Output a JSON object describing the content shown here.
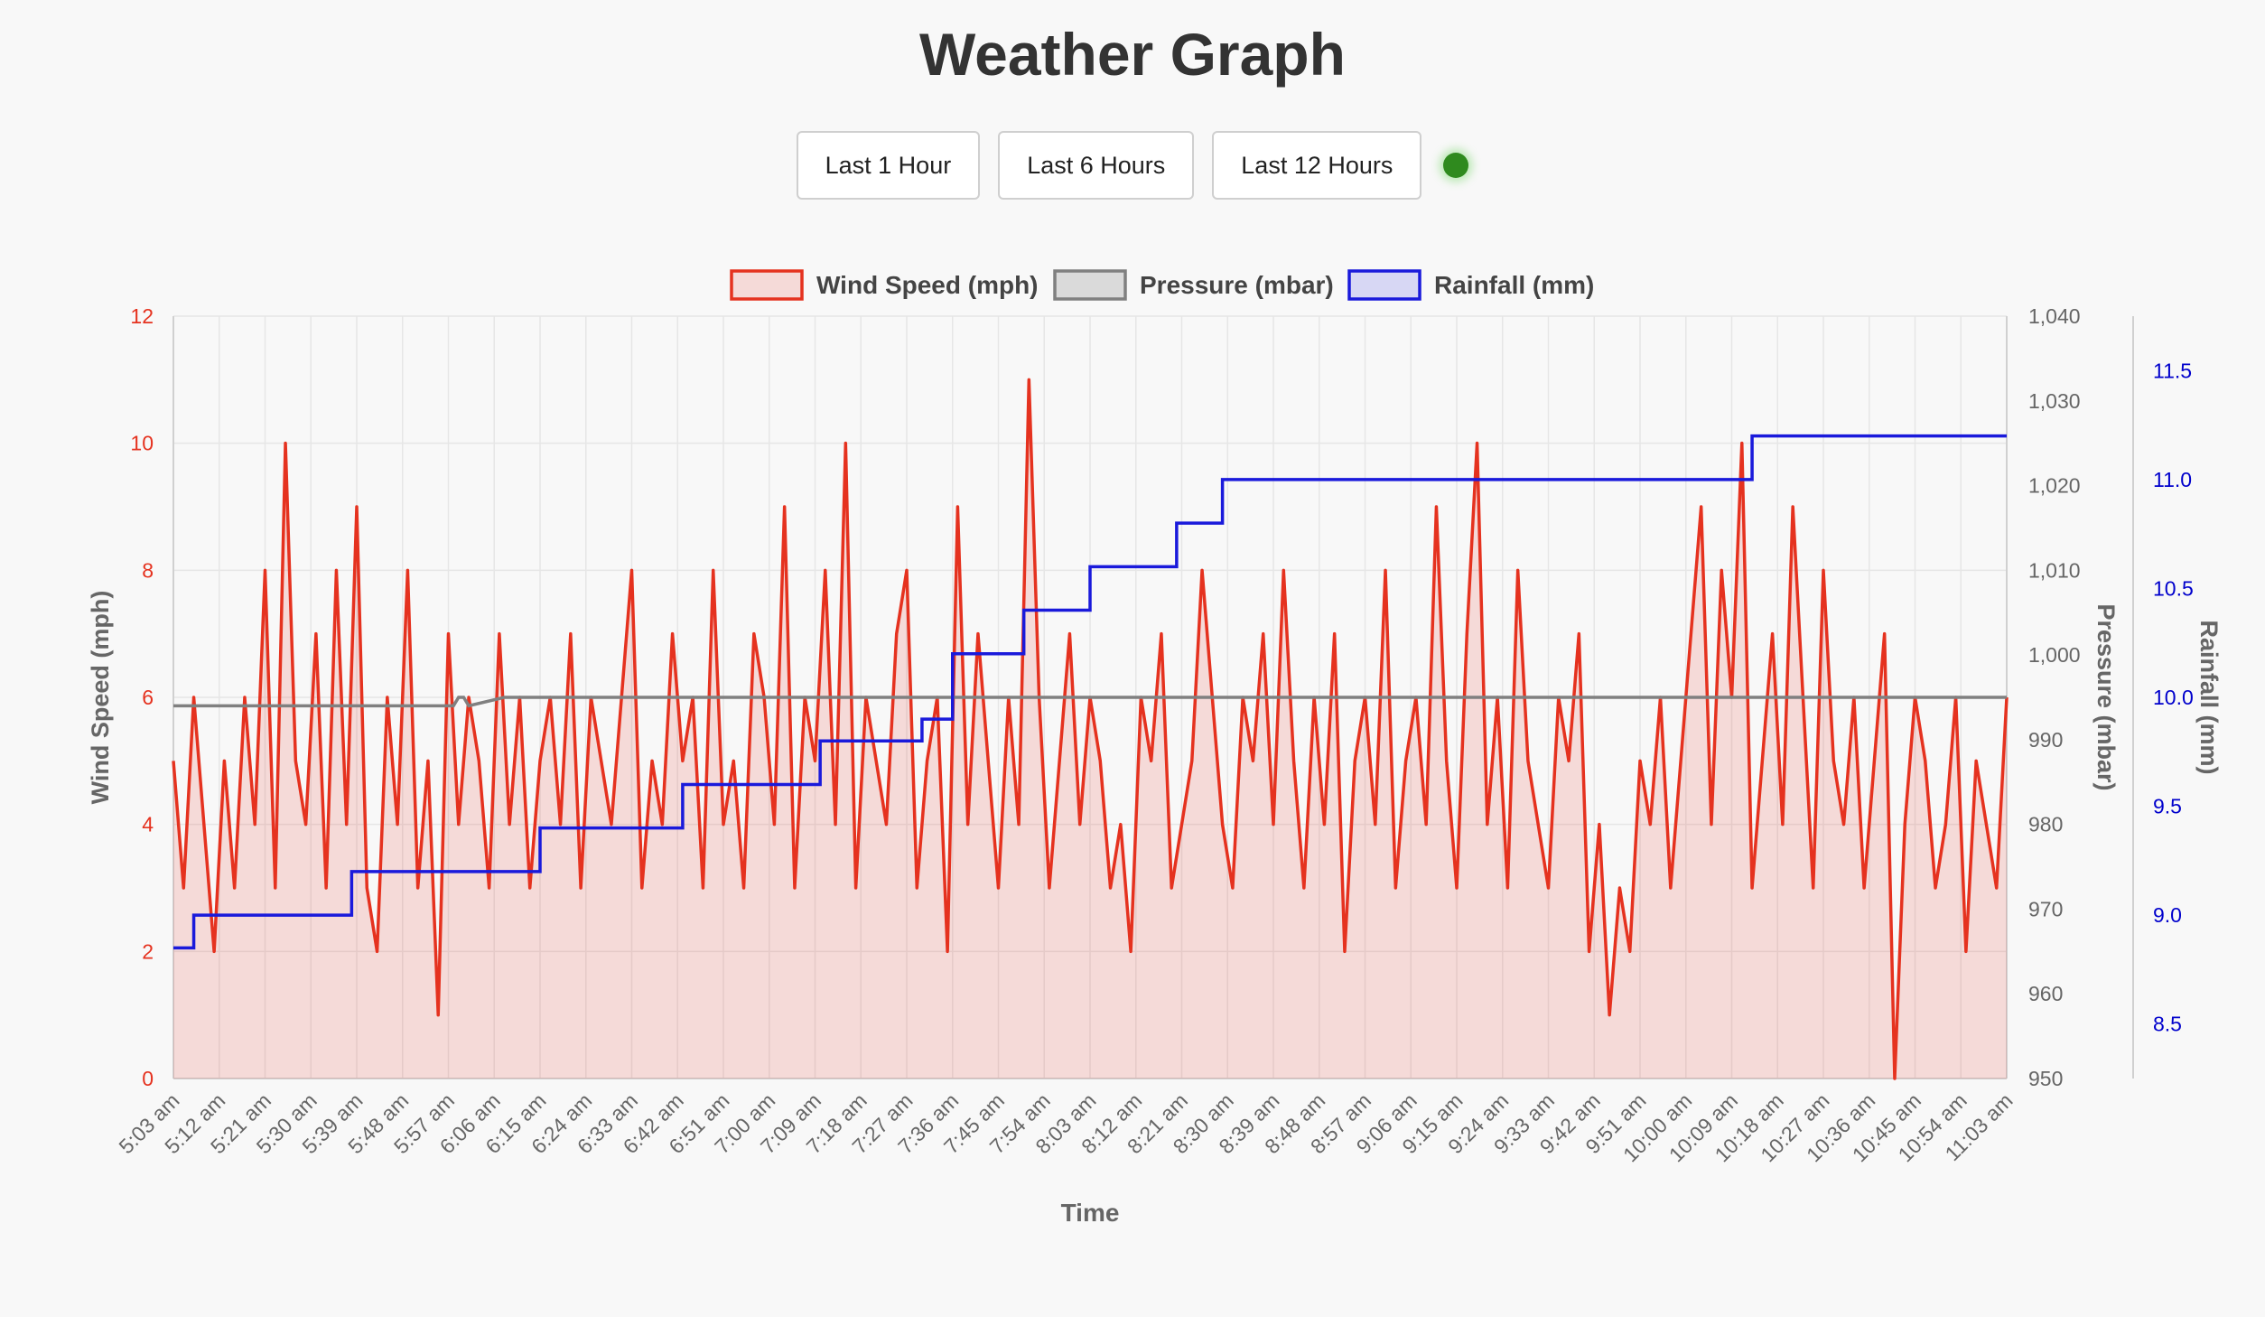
{
  "page": {
    "title": "Weather Graph"
  },
  "controls": {
    "buttons": [
      {
        "label": "Last 1 Hour"
      },
      {
        "label": "Last 6 Hours"
      },
      {
        "label": "Last 12 Hours"
      }
    ],
    "status_color": "#2f8a1e"
  },
  "chart_data": {
    "type": "line",
    "title": "",
    "xlabel": "Time",
    "ylabels": {
      "wind": "Wind Speed (mph)",
      "pressure": "Pressure (mbar)",
      "rain": "Rainfall (mm)"
    },
    "x_ticks": [
      "5:03 am",
      "5:12 am",
      "5:21 am",
      "5:30 am",
      "5:39 am",
      "5:48 am",
      "5:57 am",
      "6:06 am",
      "6:15 am",
      "6:24 am",
      "6:33 am",
      "6:42 am",
      "6:51 am",
      "7:00 am",
      "7:09 am",
      "7:18 am",
      "7:27 am",
      "7:36 am",
      "7:45 am",
      "7:54 am",
      "8:03 am",
      "8:12 am",
      "8:21 am",
      "8:30 am",
      "8:39 am",
      "8:48 am",
      "8:57 am",
      "9:06 am",
      "9:15 am",
      "9:24 am",
      "9:33 am",
      "9:42 am",
      "9:51 am",
      "10:00 am",
      "10:09 am",
      "10:18 am",
      "10:27 am",
      "10:36 am",
      "10:45 am",
      "10:54 am",
      "11:03 am"
    ],
    "x_range_minutes": [
      0,
      360
    ],
    "axes": {
      "wind": {
        "min": 0,
        "max": 12,
        "ticks": [
          "0",
          "2",
          "4",
          "6",
          "8",
          "10",
          "12"
        ],
        "color": "#e5321f"
      },
      "pressure": {
        "min": 950,
        "max": 1040,
        "ticks": [
          "950",
          "960",
          "970",
          "980",
          "990",
          "1,000",
          "1,010",
          "1,020",
          "1,030",
          "1,040"
        ],
        "color": "#666666"
      },
      "rain": {
        "min": 8.25,
        "max": 11.75,
        "ticks": [
          "8.5",
          "9.0",
          "9.5",
          "10.0",
          "10.5",
          "11.0",
          "11.5"
        ],
        "color": "#0000cc"
      }
    },
    "legend": {
      "position": "top",
      "items": [
        {
          "name": "Wind Speed (mph)",
          "stroke": "#e5321f",
          "fill": "rgba(229,50,31,0.15)"
        },
        {
          "name": "Pressure (mbar)",
          "stroke": "#808080",
          "fill": "rgba(128,128,128,0.25)"
        },
        {
          "name": "Rainfall (mm)",
          "stroke": "#1a1adb",
          "fill": "rgba(26,26,219,0.15)"
        }
      ]
    },
    "grid": true,
    "series": [
      {
        "name": "Wind Speed (mph)",
        "axis": "wind",
        "x_minutes": [
          0,
          2,
          4,
          6,
          8,
          10,
          12,
          14,
          16,
          18,
          20,
          22,
          24,
          26,
          28,
          30,
          32,
          34,
          36,
          38,
          40,
          42,
          44,
          46,
          48,
          50,
          52,
          54,
          56,
          58,
          60,
          62,
          64,
          66,
          68,
          70,
          72,
          74,
          76,
          78,
          80,
          82,
          84,
          86,
          88,
          90,
          92,
          94,
          96,
          98,
          100,
          102,
          104,
          106,
          108,
          110,
          112,
          114,
          116,
          118,
          120,
          122,
          124,
          126,
          128,
          130,
          132,
          134,
          136,
          138,
          140,
          142,
          144,
          146,
          148,
          150,
          152,
          154,
          156,
          158,
          160,
          162,
          164,
          166,
          168,
          170,
          172,
          174,
          176,
          178,
          180,
          182,
          184,
          186,
          188,
          190,
          192,
          194,
          196,
          198,
          200,
          202,
          204,
          206,
          208,
          210,
          212,
          214,
          216,
          218,
          220,
          222,
          224,
          226,
          228,
          230,
          232,
          234,
          236,
          238,
          240,
          242,
          244,
          246,
          248,
          250,
          252,
          254,
          256,
          258,
          260,
          262,
          264,
          266,
          268,
          270,
          272,
          274,
          276,
          278,
          280,
          282,
          284,
          286,
          288,
          290,
          292,
          294,
          296,
          298,
          300,
          302,
          304,
          306,
          308,
          310,
          312,
          314,
          316,
          318,
          320,
          322,
          324,
          326,
          328,
          330,
          332,
          334,
          336,
          338,
          340,
          342,
          344,
          346,
          348,
          350,
          352,
          354,
          356,
          358,
          360
        ],
        "values": [
          5,
          3,
          6,
          4,
          2,
          5,
          3,
          6,
          4,
          8,
          3,
          10,
          5,
          4,
          7,
          3,
          8,
          4,
          9,
          3,
          2,
          6,
          4,
          8,
          3,
          5,
          1,
          7,
          4,
          6,
          5,
          3,
          7,
          4,
          6,
          3,
          5,
          6,
          4,
          7,
          3,
          6,
          5,
          4,
          6,
          8,
          3,
          5,
          4,
          7,
          5,
          6,
          3,
          8,
          4,
          5,
          3,
          7,
          6,
          4,
          9,
          3,
          6,
          5,
          8,
          4,
          10,
          3,
          6,
          5,
          4,
          7,
          8,
          3,
          5,
          6,
          2,
          9,
          4,
          7,
          5,
          3,
          6,
          4,
          11,
          6,
          3,
          5,
          7,
          4,
          6,
          5,
          3,
          4,
          2,
          6,
          5,
          7,
          3,
          4,
          5,
          8,
          6,
          4,
          3,
          6,
          5,
          7,
          4,
          8,
          5,
          3,
          6,
          4,
          7,
          2,
          5,
          6,
          4,
          8,
          3,
          5,
          6,
          4,
          9,
          5,
          3,
          7,
          10,
          4,
          6,
          3,
          8,
          5,
          4,
          3,
          6,
          5,
          7,
          2,
          4,
          1,
          3,
          2,
          5,
          4,
          6,
          3,
          5,
          7,
          9,
          4,
          8,
          6,
          10,
          3,
          5,
          7,
          4,
          9,
          6,
          3,
          8,
          5,
          4,
          6,
          3,
          5,
          7,
          0,
          4,
          6,
          5,
          3,
          4,
          6,
          2,
          5,
          4,
          3,
          6
        ]
      },
      {
        "name": "Pressure (mbar)",
        "axis": "pressure",
        "x_minutes": [
          0,
          55,
          56,
          57,
          58,
          65,
          360
        ],
        "values": [
          994,
          994,
          995,
          995,
          994,
          995,
          995
        ]
      },
      {
        "name": "Rainfall (mm)",
        "axis": "rain",
        "x_minutes": [
          0,
          4,
          4,
          35,
          35,
          72,
          72,
          100,
          100,
          127,
          127,
          147,
          147,
          153,
          153,
          167,
          167,
          180,
          180,
          197,
          197,
          206,
          206,
          310,
          310,
          360
        ],
        "values": [
          8.85,
          8.85,
          9.0,
          9.0,
          9.2,
          9.2,
          9.4,
          9.4,
          9.6,
          9.6,
          9.8,
          9.8,
          9.9,
          9.9,
          10.2,
          10.2,
          10.4,
          10.4,
          10.6,
          10.6,
          10.8,
          10.8,
          11.0,
          11.0,
          11.2,
          11.2
        ]
      }
    ]
  }
}
